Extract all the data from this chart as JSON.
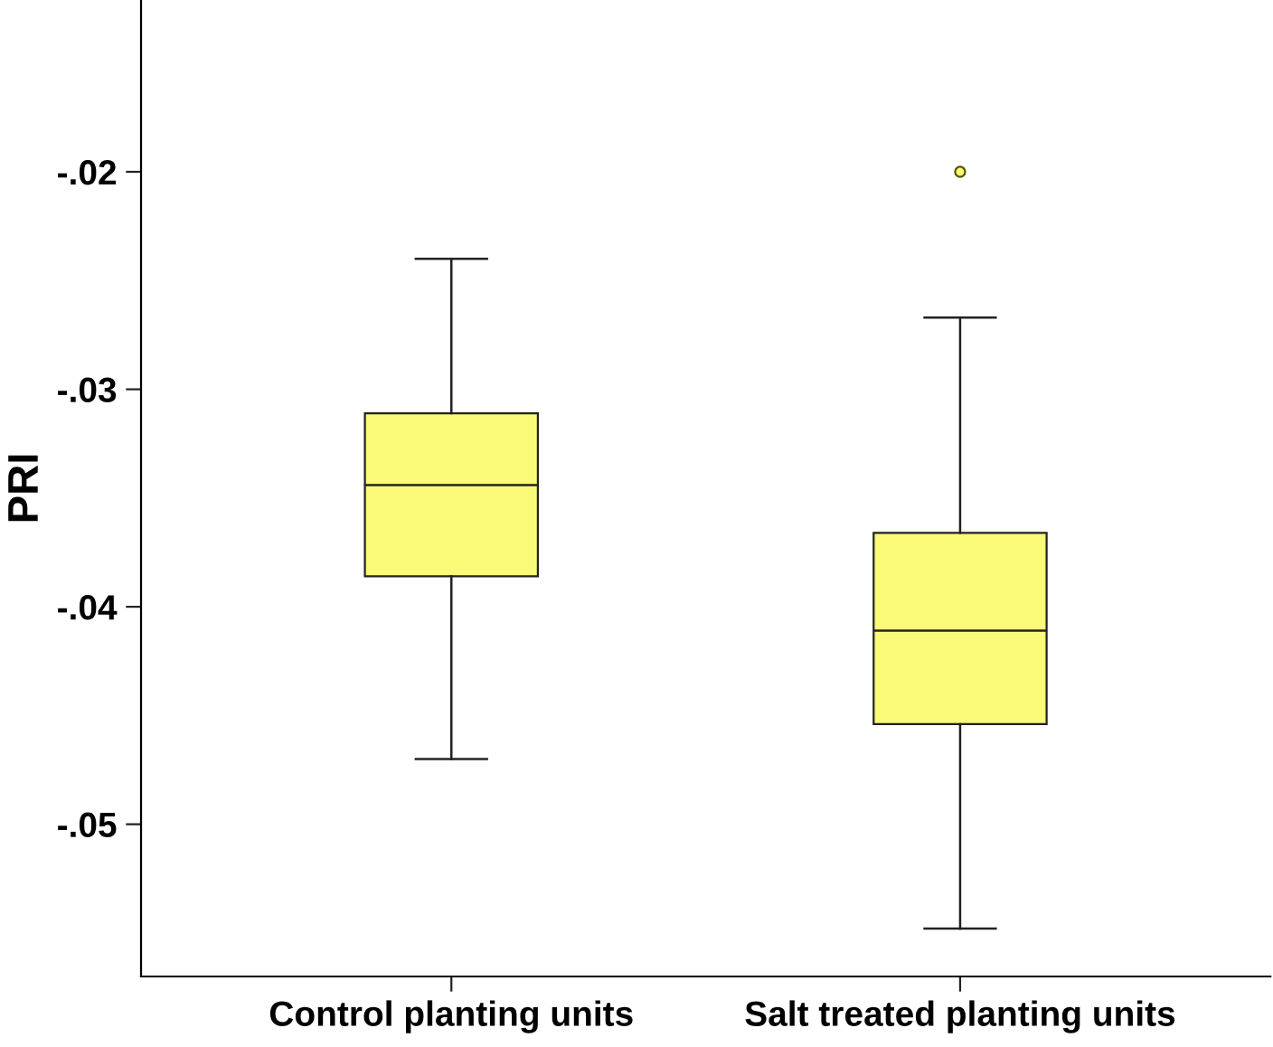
{
  "chart_data": {
    "type": "box",
    "ylabel": "PRI",
    "categories": [
      "Control planting units",
      "Salt treated planting units"
    ],
    "boxes": [
      {
        "low": -0.047,
        "q1": -0.0386,
        "median": -0.0344,
        "q3": -0.0311,
        "high": -0.024
      },
      {
        "low": -0.0548,
        "q1": -0.0454,
        "median": -0.0411,
        "q3": -0.0366,
        "high": -0.0267,
        "outliers": [
          -0.02
        ]
      }
    ],
    "color": "#fafa78",
    "ylim": [
      -0.057,
      -0.0121
    ],
    "yticks": [
      {
        "value": -0.05,
        "label": "-.05"
      },
      {
        "value": -0.04,
        "label": "-.04"
      },
      {
        "value": -0.03,
        "label": "-.03"
      },
      {
        "value": -0.02,
        "label": "-.02"
      }
    ],
    "grid": false,
    "legend": false
  }
}
